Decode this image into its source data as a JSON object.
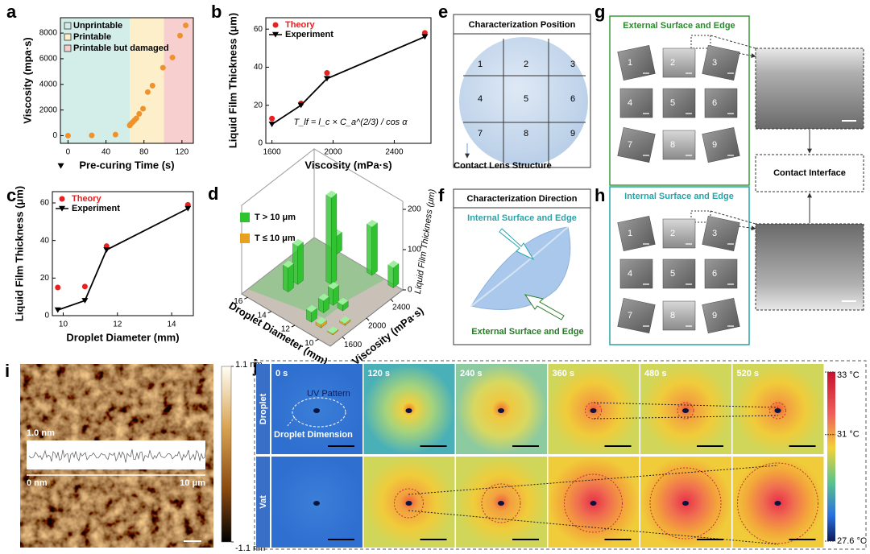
{
  "chart_data": [
    {
      "type": "scatter",
      "panel_label": "a",
      "xlabel": "Pre-curing Time (s)",
      "ylabel": "Viscosity (mpa·s)",
      "x": [
        0,
        25,
        50,
        65,
        66,
        68,
        70,
        72,
        75,
        79,
        84,
        89,
        100,
        110,
        118,
        124
      ],
      "values": [
        0,
        20,
        80,
        800,
        900,
        1050,
        1200,
        1350,
        1700,
        2100,
        3400,
        3900,
        5300,
        6100,
        7800,
        8600
      ],
      "color": "#f0922b",
      "xlim": [
        -8,
        132
      ],
      "xticks": [
        0,
        40,
        80,
        120
      ],
      "ylim": [
        -600,
        9200
      ],
      "yticks": [
        0,
        2000,
        4000,
        6000,
        8000
      ],
      "regions": [
        {
          "name": "Unprintable",
          "from": -8,
          "to": 65,
          "color": "#d3eee9"
        },
        {
          "name": "Printable",
          "from": 65,
          "to": 101,
          "color": "#fcefc9"
        },
        {
          "name": "Printable but damaged",
          "from": 101,
          "to": 132,
          "color": "#f8cfcf"
        }
      ]
    },
    {
      "type": "line",
      "panel_label": "b",
      "xlabel": "Viscosity (mPa·s)",
      "ylabel": "Liquid Film Thickness (μm)",
      "x": [
        1600,
        1790,
        1960,
        2600
      ],
      "series": [
        {
          "name": "Theory",
          "color": "#e8201f",
          "marker": "circle",
          "line": false,
          "values": [
            13,
            21,
            37,
            58
          ]
        },
        {
          "name": "Experiment",
          "color": "#000000",
          "marker": "triangle",
          "line": true,
          "values": [
            10,
            20,
            34,
            56
          ]
        }
      ],
      "xlim": [
        1560,
        2640
      ],
      "xticks": [
        1600,
        2000,
        2400
      ],
      "ylim": [
        0,
        66
      ],
      "yticks": [
        0,
        20,
        40,
        60
      ],
      "annotation": "T_lf = l_c × C_a^(2/3) / cos α"
    },
    {
      "type": "line",
      "panel_label": "c",
      "xlabel": "Droplet Diameter (mm)",
      "ylabel": "Liquid Film Thickness (μm)",
      "x": [
        9.8,
        10.8,
        11.6,
        14.6
      ],
      "series": [
        {
          "name": "Theory",
          "color": "#e8201f",
          "marker": "circle",
          "line": false,
          "values": [
            15,
            15.5,
            37,
            59
          ]
        },
        {
          "name": "Experiment",
          "color": "#000000",
          "marker": "triangle",
          "line": true,
          "values": [
            3,
            8,
            35,
            57
          ]
        }
      ],
      "xlim": [
        9.6,
        14.8
      ],
      "xticks": [
        10,
        12,
        14
      ],
      "ylim": [
        0,
        66
      ],
      "yticks": [
        0,
        20,
        40,
        60
      ]
    },
    {
      "type": "bar3d",
      "panel_label": "d",
      "xlabel": "Droplet Diameter (mm)",
      "ylabel": "Viscosity (mPa·s)",
      "zlabel": "Liquid Film Thickness (μm)",
      "xlim": [
        9,
        16.5
      ],
      "xticks": [
        10,
        12,
        14,
        16
      ],
      "ylim": [
        1400,
        2600
      ],
      "yticks": [
        1600,
        2000,
        2400
      ],
      "zlim": [
        0,
        220
      ],
      "zticks": [
        0,
        100,
        200
      ],
      "series": [
        {
          "name": "T > 10 μm",
          "color": "#2fc42f",
          "diameter": [
            14.6,
            14.6,
            13,
            14.6,
            11.6,
            11.6,
            11.6,
            11.6,
            10.8,
            9.8
          ],
          "viscosity": [
            2600,
            1960,
            2200,
            1800,
            2600,
            1960,
            1800,
            1600,
            1960,
            2600
          ],
          "values": [
            45,
            95,
            215,
            60,
            120,
            40,
            30,
            25,
            15,
            50
          ]
        },
        {
          "name": "T ≤ 10 μm",
          "color": "#e8a020",
          "diameter": [
            10.8,
            9.8,
            9.8
          ],
          "viscosity": [
            1600,
            1800,
            1600
          ],
          "values": [
            8,
            5,
            3
          ]
        }
      ]
    }
  ],
  "panels": {
    "e": {
      "label": "e",
      "title": "Characterization Position",
      "cells": [
        "1",
        "2",
        "3",
        "4",
        "5",
        "6",
        "7",
        "8",
        "9"
      ],
      "note": "Contact Lens Structure"
    },
    "f": {
      "label": "f",
      "title": "Characterization Direction",
      "inner": "Internal Surface and Edge",
      "outer": "External Surface and Edge"
    },
    "g": {
      "label": "g",
      "title": "External Surface and Edge",
      "cells": [
        "1",
        "2",
        "3",
        "4",
        "5",
        "6",
        "7",
        "8",
        "9"
      ]
    },
    "h": {
      "label": "h",
      "title": "Internal Surface and Edge",
      "cells": [
        "1",
        "2",
        "3",
        "4",
        "5",
        "6",
        "7",
        "8",
        "9"
      ]
    },
    "interface": "Contact Interface",
    "i": {
      "label": "i",
      "profile_height": "1.0 nm",
      "profile_start": "0 nm",
      "profile_end": "10 μm",
      "colorbar": [
        {
          "value": 1.1,
          "label": "1.1 nm"
        },
        {
          "value": -1.1,
          "label": "-1.1 nm"
        }
      ],
      "colorbar_lim": [
        -1.1,
        1.1
      ]
    },
    "j": {
      "label": "j",
      "times": [
        "0 s",
        "120 s",
        "240 s",
        "360 s",
        "480 s",
        "520 s"
      ],
      "rows": [
        "Droplet",
        "Vat"
      ],
      "uv_pattern": "UV Pattern",
      "droplet_dimension": "Droplet Dimension",
      "colorbar": [
        {
          "value": 33,
          "label": "33 °C"
        },
        {
          "value": 31,
          "label": "31 °C"
        },
        {
          "value": 27.6,
          "label": "27.6 °C"
        }
      ],
      "colorbar_lim": [
        27.6,
        33
      ]
    }
  }
}
